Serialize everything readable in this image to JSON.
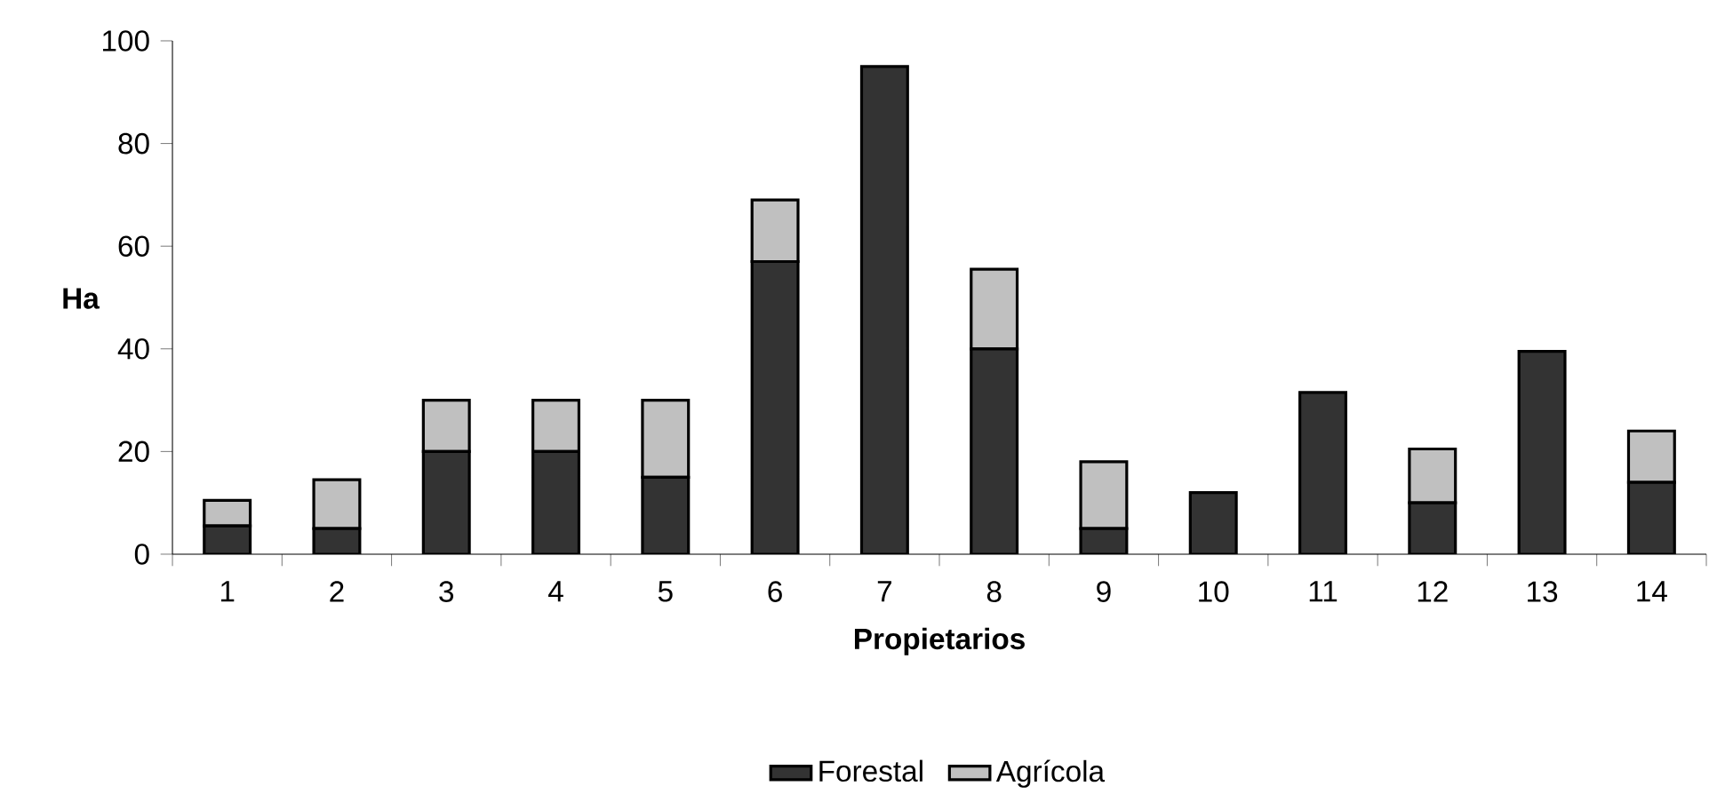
{
  "chart_data": {
    "type": "bar",
    "stacked": true,
    "xlabel": "Propietarios",
    "ylabel": "Ha",
    "categories": [
      "1",
      "2",
      "3",
      "4",
      "5",
      "6",
      "7",
      "8",
      "9",
      "10",
      "11",
      "12",
      "13",
      "14"
    ],
    "series": [
      {
        "name": "Forestal",
        "color": "#333333",
        "values": [
          5.5,
          5,
          20,
          20,
          15,
          57,
          95,
          40,
          5,
          12,
          31.5,
          10,
          39.5,
          14
        ]
      },
      {
        "name": "Agrícola",
        "color": "#c0c0c0",
        "values": [
          5,
          9.5,
          10,
          10,
          15,
          12,
          0,
          15.5,
          13,
          0,
          0,
          10.5,
          0,
          10
        ]
      }
    ],
    "ylim": [
      0,
      100
    ],
    "yticks": [
      0,
      20,
      40,
      60,
      80,
      100
    ],
    "legend": "bottom",
    "grid": false
  }
}
